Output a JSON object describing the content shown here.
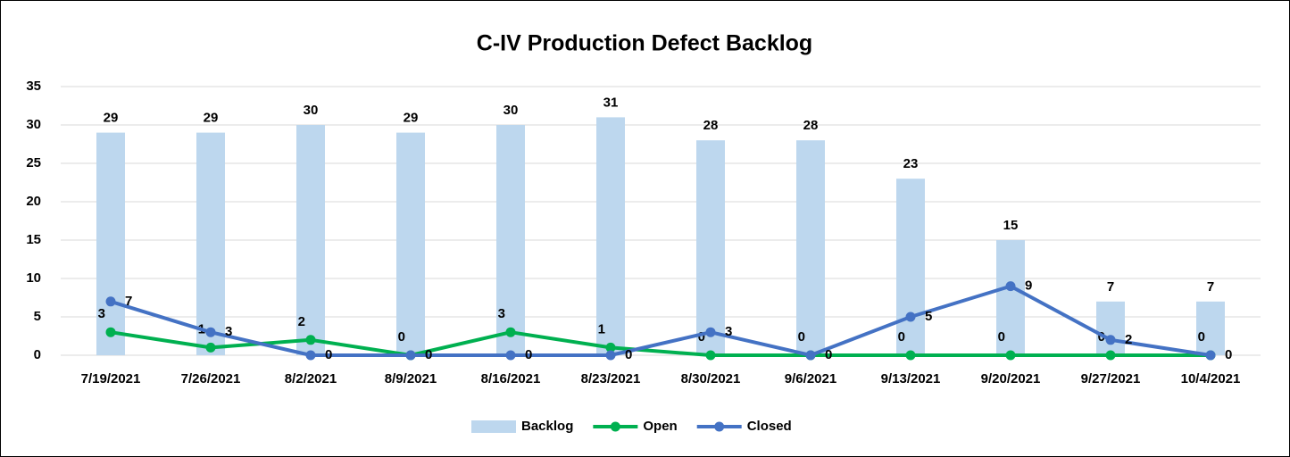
{
  "chart_data": {
    "type": "bar",
    "title": "C-IV Production Defect Backlog",
    "categories": [
      "7/19/2021",
      "7/26/2021",
      "8/2/2021",
      "8/9/2021",
      "8/16/2021",
      "8/23/2021",
      "8/30/2021",
      "9/6/2021",
      "9/13/2021",
      "9/20/2021",
      "9/27/2021",
      "10/4/2021"
    ],
    "series": [
      {
        "name": "Backlog",
        "type": "bar",
        "color": "#bdd7ee",
        "values": [
          29,
          29,
          30,
          29,
          30,
          31,
          28,
          28,
          23,
          15,
          7,
          7
        ]
      },
      {
        "name": "Open",
        "type": "line",
        "color": "#00b050",
        "values": [
          3,
          1,
          2,
          0,
          3,
          1,
          0,
          0,
          0,
          0,
          0,
          0
        ]
      },
      {
        "name": "Closed",
        "type": "line",
        "color": "#4472c4",
        "values": [
          7,
          3,
          0,
          0,
          0,
          0,
          3,
          0,
          5,
          9,
          2,
          0
        ]
      }
    ],
    "ylim": [
      0,
      35
    ],
    "yticks": [
      0,
      5,
      10,
      15,
      20,
      25,
      30,
      35
    ],
    "grid": true,
    "legend": "bottom"
  }
}
